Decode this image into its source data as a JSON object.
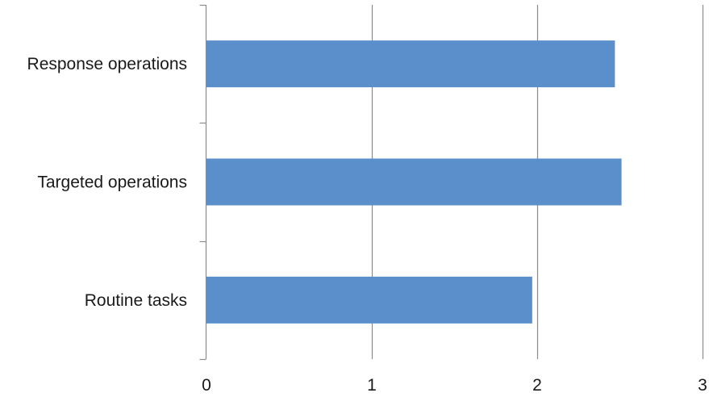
{
  "chart_data": {
    "type": "bar",
    "orientation": "horizontal",
    "categories": [
      "Response operations",
      "Targeted operations",
      "Routine tasks"
    ],
    "values": [
      2.47,
      2.51,
      1.97
    ],
    "xlim": [
      0,
      3
    ],
    "xticks": [
      "0",
      "1",
      "2",
      "3"
    ],
    "grid": "vertical-major",
    "legend": "none",
    "bar_color": "#5A8FCB",
    "grid_color": "#8C8C8C",
    "axis_color": "#8C8C8C"
  }
}
